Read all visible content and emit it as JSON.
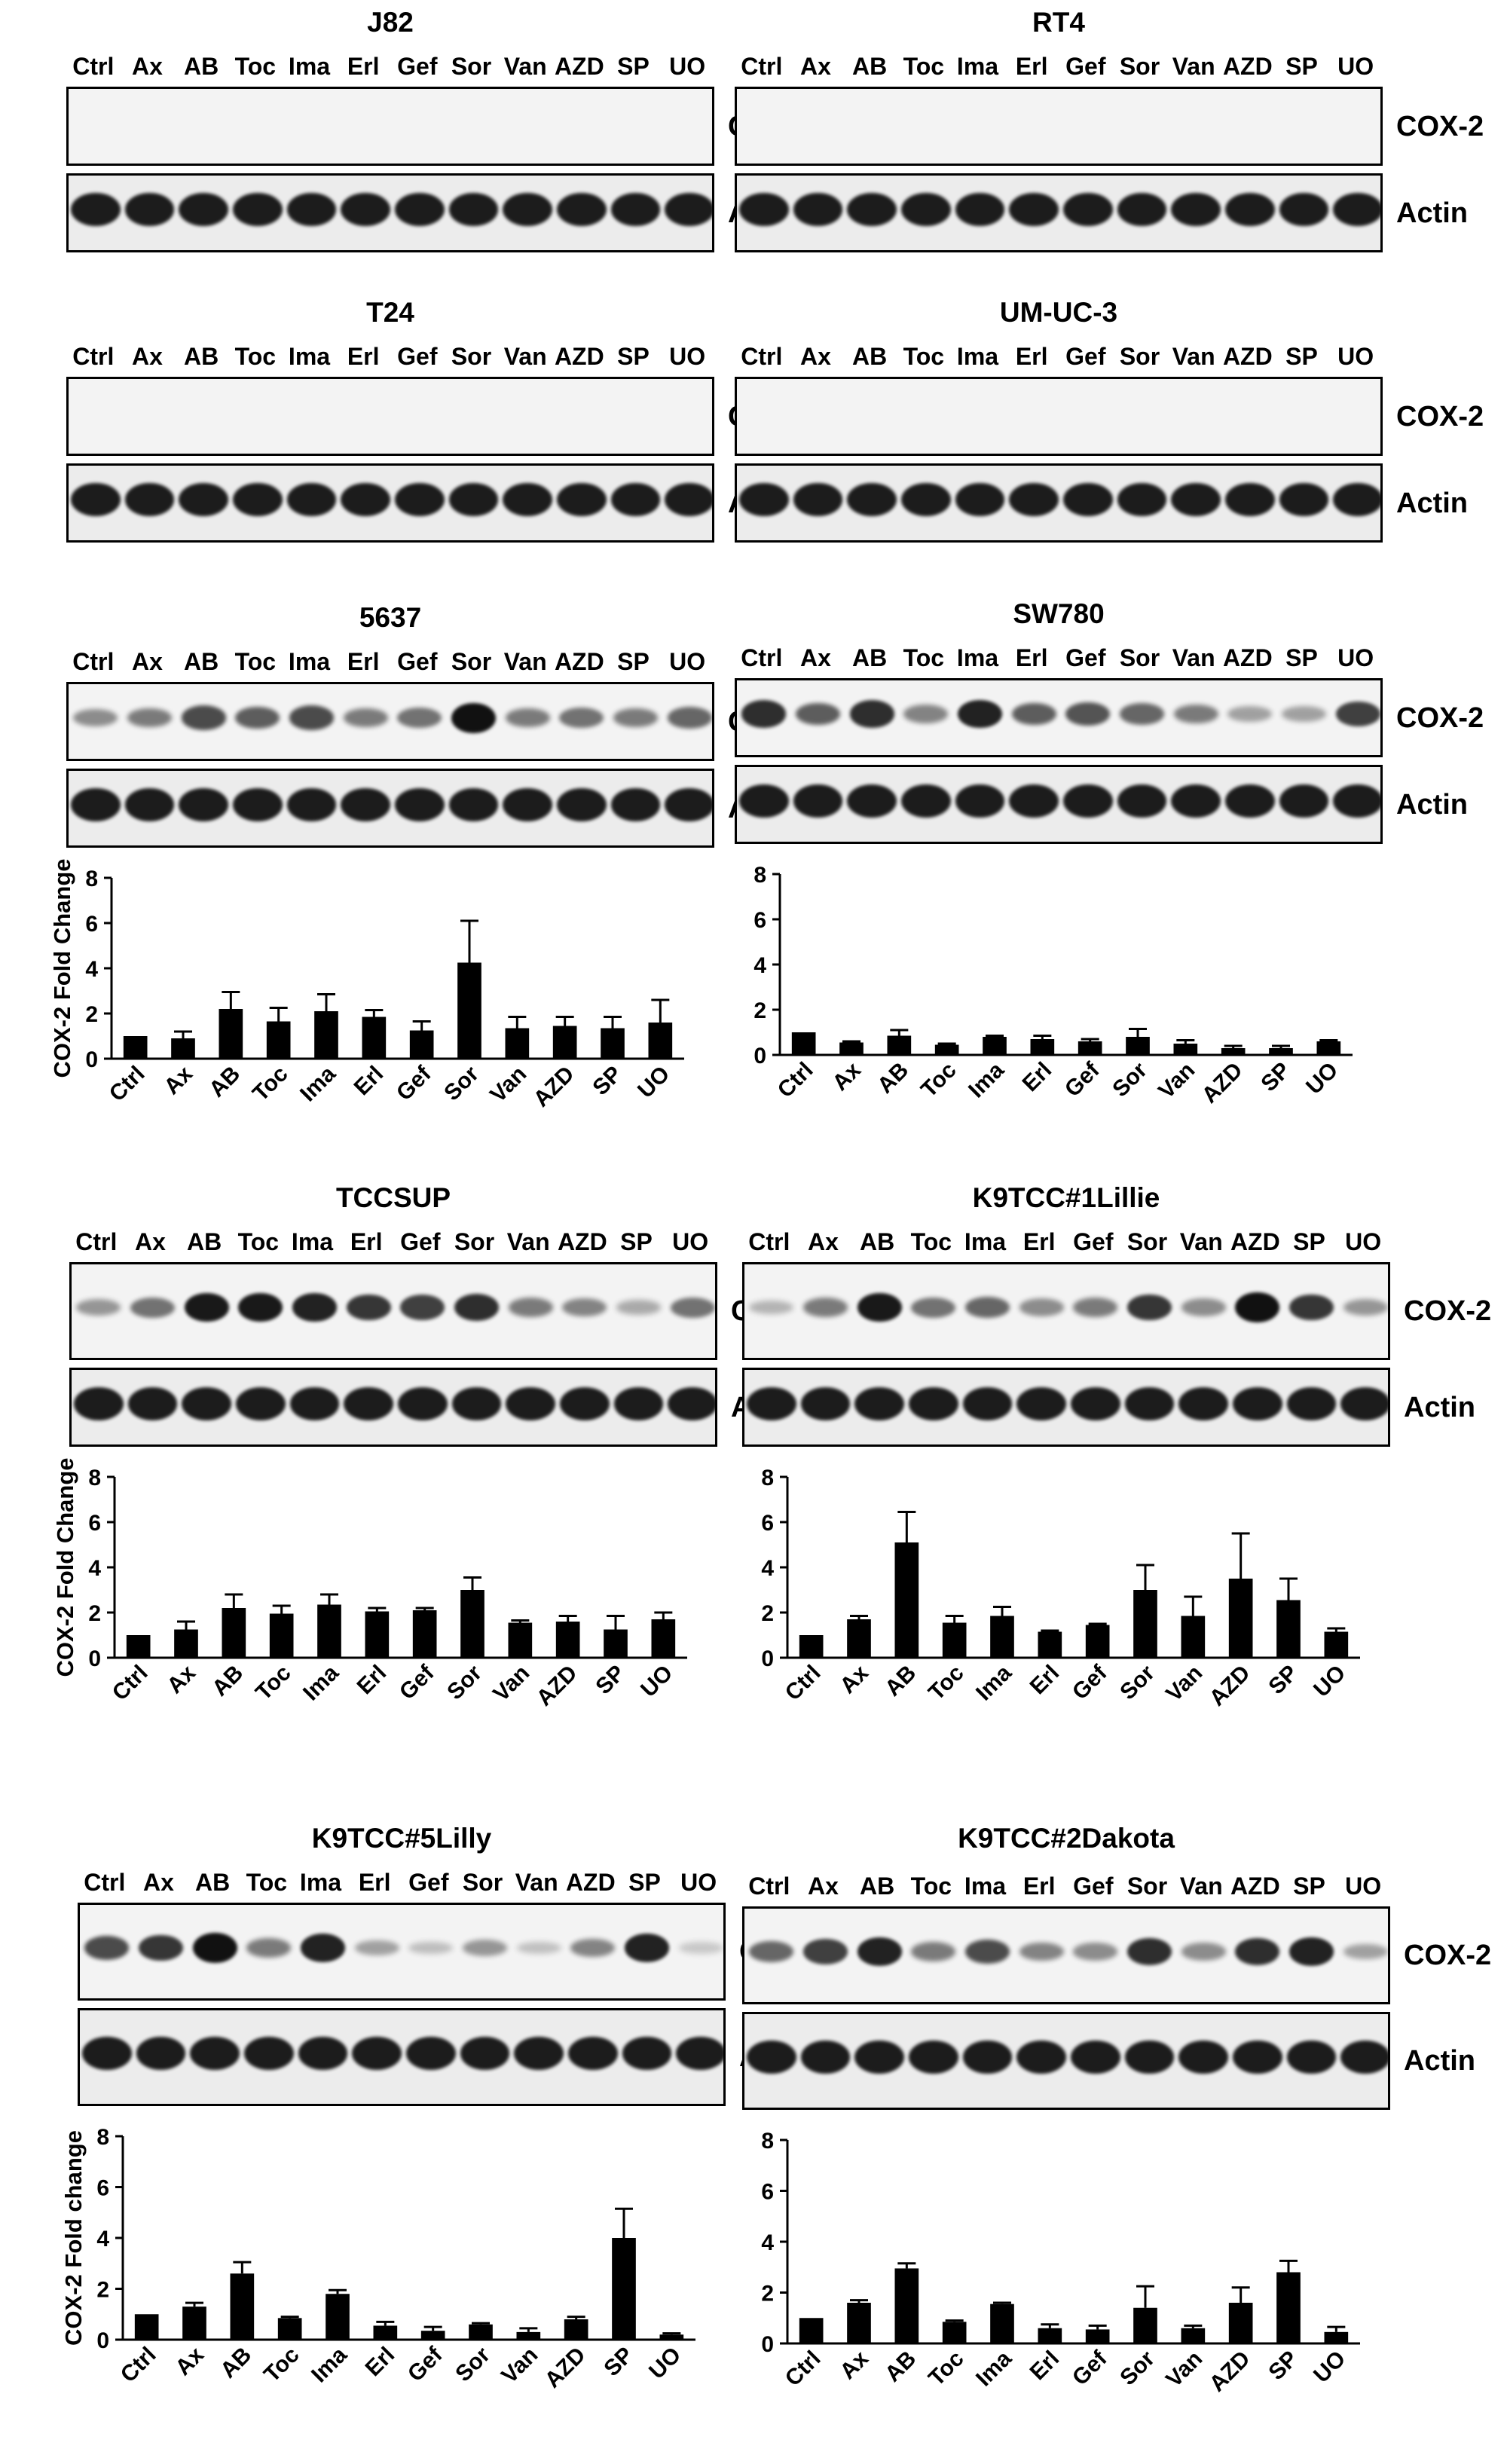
{
  "lanes": [
    "Ctrl",
    "Ax",
    "AB",
    "Toc",
    "Ima",
    "Erl",
    "Gef",
    "Sor",
    "Van",
    "AZD",
    "SP",
    "UO"
  ],
  "marker_cox2": "COX-2",
  "marker_actin": "Actin",
  "panels": [
    {
      "title": "J82",
      "cox2_band_intensity": [
        0,
        0,
        0,
        0,
        0,
        0,
        0,
        0,
        0,
        0,
        0,
        0
      ]
    },
    {
      "title": "RT4",
      "cox2_band_intensity": [
        0,
        0,
        0,
        0,
        0,
        0,
        0,
        0,
        0,
        0,
        0,
        0
      ]
    },
    {
      "title": "T24",
      "cox2_band_intensity": [
        0,
        0,
        0,
        0,
        0,
        0,
        0,
        0,
        0,
        0,
        0,
        0
      ]
    },
    {
      "title": "UM-UC-3",
      "cox2_band_intensity": [
        0,
        0,
        0,
        0,
        0,
        0,
        0,
        0,
        0,
        0,
        0,
        0
      ]
    },
    {
      "title": "5637",
      "cox2_band_intensity": [
        0.35,
        0.45,
        0.7,
        0.6,
        0.7,
        0.45,
        0.5,
        1.0,
        0.45,
        0.5,
        0.45,
        0.55
      ]
    },
    {
      "title": "SW780",
      "cox2_band_intensity": [
        0.85,
        0.6,
        0.85,
        0.4,
        0.9,
        0.6,
        0.65,
        0.55,
        0.45,
        0.25,
        0.25,
        0.75
      ]
    },
    {
      "title": "TCCSUP",
      "cox2_band_intensity": [
        0.3,
        0.5,
        0.95,
        0.95,
        0.9,
        0.8,
        0.75,
        0.85,
        0.45,
        0.4,
        0.2,
        0.5
      ]
    },
    {
      "title": "K9TCC#1Lillie",
      "cox2_band_intensity": [
        0.15,
        0.45,
        0.95,
        0.5,
        0.55,
        0.35,
        0.45,
        0.8,
        0.35,
        1.0,
        0.8,
        0.3
      ]
    },
    {
      "title": "K9TCC#5Lilly",
      "cox2_band_intensity": [
        0.7,
        0.8,
        1.0,
        0.45,
        0.9,
        0.25,
        0.1,
        0.3,
        0.08,
        0.4,
        0.9,
        0.05
      ]
    },
    {
      "title": "K9TCC#2Dakota",
      "cox2_band_intensity": [
        0.55,
        0.75,
        0.9,
        0.45,
        0.7,
        0.4,
        0.35,
        0.85,
        0.35,
        0.85,
        0.9,
        0.25
      ]
    }
  ],
  "chart_data": [
    {
      "type": "bar",
      "panel": "5637",
      "categories": [
        "Ctrl",
        "Ax",
        "AB",
        "Toc",
        "Ima",
        "Erl",
        "Gef",
        "Sor",
        "Van",
        "AZD",
        "SP",
        "UO"
      ],
      "values": [
        1.0,
        0.9,
        2.2,
        1.65,
        2.1,
        1.85,
        1.25,
        4.25,
        1.35,
        1.45,
        1.35,
        1.6
      ],
      "errors": [
        0,
        0.3,
        0.75,
        0.6,
        0.75,
        0.3,
        0.4,
        1.85,
        0.5,
        0.4,
        0.5,
        1.0
      ],
      "ylabel": "COX-2 Fold Change",
      "ylim": [
        0,
        8
      ],
      "yticks": [
        0,
        2,
        4,
        6,
        8
      ]
    },
    {
      "type": "bar",
      "panel": "SW780",
      "categories": [
        "Ctrl",
        "Ax",
        "AB",
        "Toc",
        "Ima",
        "Erl",
        "Gef",
        "Sor",
        "Van",
        "AZD",
        "SP",
        "UO"
      ],
      "values": [
        1.0,
        0.55,
        0.85,
        0.45,
        0.8,
        0.7,
        0.6,
        0.8,
        0.5,
        0.3,
        0.3,
        0.6
      ],
      "errors": [
        0,
        0.05,
        0.25,
        0.05,
        0.05,
        0.15,
        0.1,
        0.35,
        0.15,
        0.1,
        0.1,
        0.05
      ],
      "ylabel": "",
      "ylim": [
        0,
        8
      ],
      "yticks": [
        0,
        2,
        4,
        6,
        8
      ]
    },
    {
      "type": "bar",
      "panel": "TCCSUP",
      "categories": [
        "Ctrl",
        "Ax",
        "AB",
        "Toc",
        "Ima",
        "Erl",
        "Gef",
        "Sor",
        "Van",
        "AZD",
        "SP",
        "UO"
      ],
      "values": [
        1.0,
        1.25,
        2.2,
        1.95,
        2.35,
        2.05,
        2.1,
        3.0,
        1.55,
        1.6,
        1.25,
        1.7
      ],
      "errors": [
        0,
        0.35,
        0.6,
        0.35,
        0.45,
        0.15,
        0.1,
        0.55,
        0.1,
        0.25,
        0.6,
        0.3
      ],
      "ylabel": "COX-2 Fold Change",
      "ylim": [
        0,
        8
      ],
      "yticks": [
        0,
        2,
        4,
        6,
        8
      ]
    },
    {
      "type": "bar",
      "panel": "K9TCC#1Lillie",
      "categories": [
        "Ctrl",
        "Ax",
        "AB",
        "Toc",
        "Ima",
        "Erl",
        "Gef",
        "Sor",
        "Van",
        "AZD",
        "SP",
        "UO"
      ],
      "values": [
        1.0,
        1.7,
        5.1,
        1.55,
        1.85,
        1.15,
        1.45,
        3.0,
        1.85,
        3.5,
        2.55,
        1.15
      ],
      "errors": [
        0,
        0.15,
        1.35,
        0.3,
        0.4,
        0.05,
        0.05,
        1.1,
        0.85,
        2.0,
        0.95,
        0.15
      ],
      "ylabel": "",
      "ylim": [
        0,
        8
      ],
      "yticks": [
        0,
        2,
        4,
        6,
        8
      ]
    },
    {
      "type": "bar",
      "panel": "K9TCC#5Lilly",
      "categories": [
        "Ctrl",
        "Ax",
        "AB",
        "Toc",
        "Ima",
        "Erl",
        "Gef",
        "Sor",
        "Van",
        "AZD",
        "SP",
        "UO"
      ],
      "values": [
        1.0,
        1.3,
        2.6,
        0.85,
        1.8,
        0.55,
        0.35,
        0.6,
        0.3,
        0.8,
        4.0,
        0.2
      ],
      "errors": [
        0,
        0.15,
        0.45,
        0.05,
        0.15,
        0.15,
        0.15,
        0.05,
        0.15,
        0.1,
        1.15,
        0.05
      ],
      "ylabel": "COX-2 Fold change",
      "ylim": [
        0,
        8
      ],
      "yticks": [
        0,
        2,
        4,
        6,
        8
      ]
    },
    {
      "type": "bar",
      "panel": "K9TCC#2Dakota",
      "categories": [
        "Ctrl",
        "Ax",
        "AB",
        "Toc",
        "Ima",
        "Erl",
        "Gef",
        "Sor",
        "Van",
        "AZD",
        "SP",
        "UO"
      ],
      "values": [
        1.0,
        1.6,
        2.95,
        0.85,
        1.55,
        0.6,
        0.55,
        1.4,
        0.6,
        1.6,
        2.8,
        0.45
      ],
      "errors": [
        0,
        0.1,
        0.2,
        0.05,
        0.05,
        0.15,
        0.15,
        0.85,
        0.1,
        0.6,
        0.45,
        0.2
      ],
      "ylabel": "",
      "ylim": [
        0,
        8
      ],
      "yticks": [
        0,
        2,
        4,
        6,
        8
      ]
    }
  ]
}
